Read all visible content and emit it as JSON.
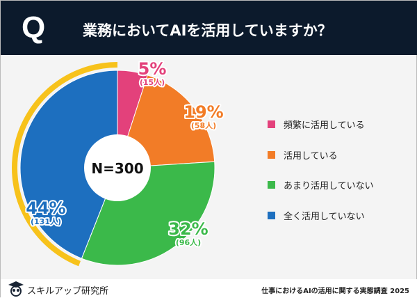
{
  "header": {
    "q": "Q",
    "title": "業務においてAIを活用していますか？"
  },
  "colors": {
    "pink": "#e3417b",
    "orange": "#f27c27",
    "green": "#3bb94a",
    "blue": "#1d6fbf",
    "ring": "#f7c21b"
  },
  "chart_data": {
    "type": "pie",
    "title": "業務においてAIを活用していますか？",
    "center_label": "N=300",
    "slices": [
      {
        "label": "頻繁に活用している",
        "percent": 5,
        "count": "(15人)",
        "pct_label": "5%",
        "color": "#e3417b"
      },
      {
        "label": "活用している",
        "percent": 19,
        "count": "(58人)",
        "pct_label": "19%",
        "color": "#f27c27"
      },
      {
        "label": "あまり活用していない",
        "percent": 32,
        "count": "(96人)",
        "pct_label": "32%",
        "color": "#3bb94a"
      },
      {
        "label": "全く活用していない",
        "percent": 44,
        "count": "(131人)",
        "pct_label": "44%",
        "color": "#1d6fbf"
      }
    ],
    "legend_position": "right"
  },
  "footer": {
    "brand": "スキルアップ研究所",
    "source": "仕事におけるAIの活用に関する実態調査 2025"
  }
}
